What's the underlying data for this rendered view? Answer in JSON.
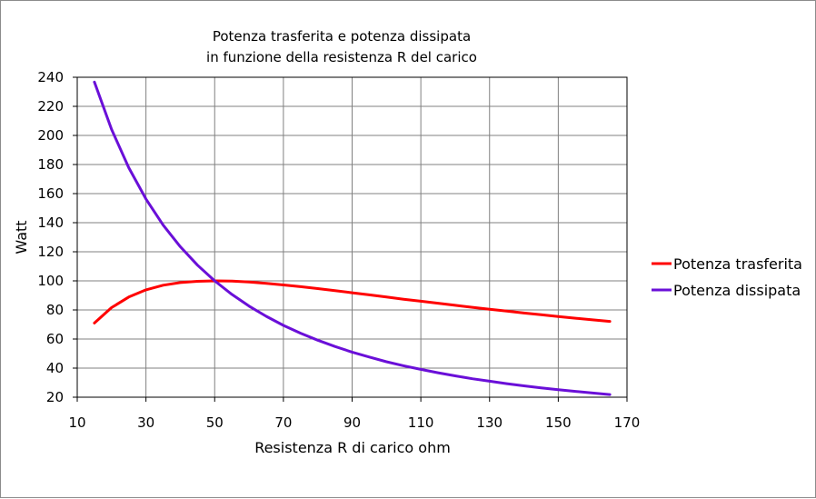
{
  "chart_data": {
    "type": "line",
    "title": [
      "Potenza trasferita e potenza dissipata",
      "in funzione della resistenza R del carico"
    ],
    "xlabel": "Resistenza R di carico ohm",
    "ylabel": "Watt",
    "xlim": [
      10,
      170
    ],
    "ylim": [
      20,
      240
    ],
    "xticks": [
      10,
      30,
      50,
      70,
      90,
      110,
      130,
      150,
      170
    ],
    "yticks": [
      20,
      40,
      60,
      80,
      100,
      120,
      140,
      160,
      180,
      200,
      220,
      240
    ],
    "grid": true,
    "legend_position": "right",
    "x": [
      15,
      20,
      25,
      30,
      35,
      40,
      45,
      50,
      55,
      60,
      65,
      70,
      75,
      80,
      85,
      90,
      95,
      100,
      105,
      110,
      115,
      120,
      125,
      130,
      135,
      140,
      145,
      150,
      155,
      160,
      165
    ],
    "series": [
      {
        "name": "Potenza trasferita",
        "color": "#ff0000",
        "values": [
          71.0,
          81.6,
          88.9,
          93.8,
          97.0,
          98.8,
          99.7,
          100.0,
          99.8,
          99.2,
          98.3,
          97.2,
          96.0,
          94.7,
          93.3,
          91.8,
          90.4,
          88.9,
          87.4,
          86.0,
          84.6,
          83.2,
          81.8,
          80.5,
          79.2,
          77.9,
          76.7,
          75.5,
          74.3,
          73.2,
          72.1
        ]
      },
      {
        "name": "Potenza dissipata",
        "color": "#6a0fd8",
        "values": [
          236.7,
          204.1,
          177.8,
          156.3,
          138.4,
          123.5,
          110.8,
          100.0,
          90.7,
          82.6,
          75.6,
          69.4,
          64.0,
          59.2,
          54.9,
          51.0,
          47.6,
          44.4,
          41.6,
          39.1,
          36.8,
          34.7,
          32.7,
          31.0,
          29.3,
          27.8,
          26.4,
          25.2,
          24.0,
          22.9,
          21.8
        ]
      }
    ]
  }
}
